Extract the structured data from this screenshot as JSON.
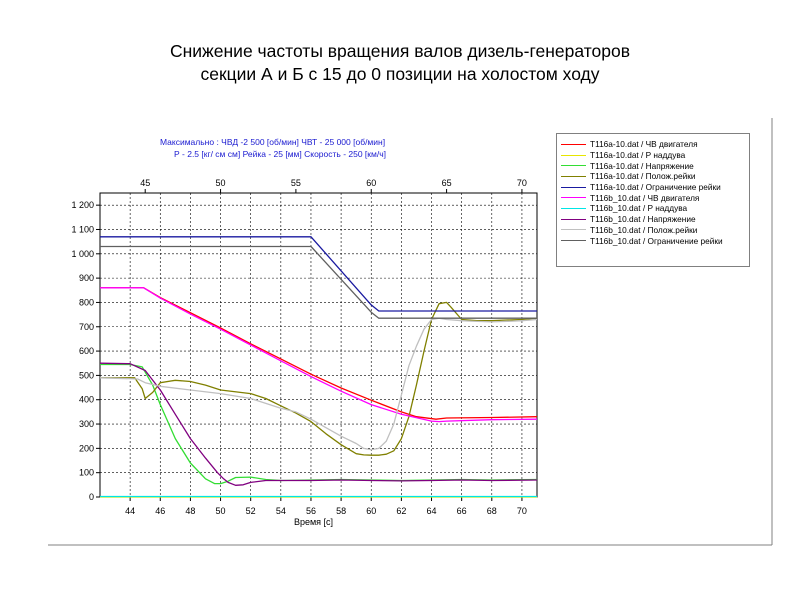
{
  "title": {
    "line1": "Снижение частоты вращения валов дизель-генераторов",
    "line2": "секции А и Б  с 15 до 0 позиции на холостом  ходу"
  },
  "header_info": {
    "line1": "Максимально :   ЧВД -2 500  [об/мин]    ЧВТ - 25 000 [об/мин]",
    "line2": "Р - 2.5 [кг/ см см]   Рейка - 25 [мм]  Скорость - 250 [км/ч]"
  },
  "colors": {
    "title": "#000000",
    "header": "#1a1ad0",
    "grid": "#000000",
    "frame": "#808080"
  },
  "chart_data": {
    "type": "line",
    "title": "",
    "xlabel": "Время [с]",
    "ylabel": "",
    "xlim": [
      42,
      71
    ],
    "ylim": [
      0,
      1250
    ],
    "x_ticks_bottom": [
      44,
      46,
      48,
      50,
      52,
      54,
      56,
      58,
      60,
      62,
      64,
      66,
      68,
      70
    ],
    "x_ticks_top": [
      45,
      50,
      55,
      60,
      65,
      70
    ],
    "y_ticks": [
      0,
      100,
      200,
      300,
      400,
      500,
      600,
      700,
      800,
      900,
      1000,
      1100,
      1200
    ],
    "y_tick_labels": [
      "0",
      "100",
      "200",
      "300",
      "400",
      "500",
      "600",
      "700",
      "800",
      "900",
      "1 000",
      "1 100",
      "1 200"
    ],
    "grid": true,
    "legend_position": "right",
    "series": [
      {
        "name": "T116a-10.dat / ЧВ двигателя",
        "color": "#ff0000",
        "x": [
          42,
          44.9,
          46,
          48,
          50,
          52,
          54,
          56,
          58,
          60,
          62,
          63,
          64.3,
          65,
          68,
          71
        ],
        "y": [
          860,
          860,
          820,
          758,
          695,
          630,
          568,
          505,
          448,
          398,
          350,
          330,
          320,
          325,
          327,
          330
        ]
      },
      {
        "name": "T116a-10.dat / P наддува",
        "color": "#e6e600",
        "x": [
          42,
          71
        ],
        "y": [
          0,
          0
        ]
      },
      {
        "name": "T116a-10.dat / Напряжение",
        "color": "#33dd33",
        "x": [
          42,
          44,
          44.8,
          45.5,
          46,
          47,
          48,
          49,
          49.6,
          50,
          50.5,
          51,
          52,
          53,
          54,
          56,
          58,
          60,
          62,
          64,
          66,
          68,
          71
        ],
        "y": [
          545,
          545,
          535,
          460,
          380,
          240,
          140,
          75,
          55,
          55,
          65,
          80,
          82,
          72,
          68,
          70,
          72,
          70,
          68,
          70,
          72,
          70,
          72
        ]
      },
      {
        "name": "T116a-10.dat / Полож.рейки",
        "color": "#808000",
        "x": [
          42,
          44.3,
          44.8,
          45,
          45.5,
          46,
          47,
          48,
          49,
          50,
          52,
          53,
          54,
          55,
          56,
          57,
          58,
          59,
          59.5,
          60,
          60.5,
          61,
          61.5,
          62,
          62.5,
          63,
          63.5,
          64,
          64.5,
          65,
          65.3,
          66,
          67,
          68,
          69,
          70,
          71
        ],
        "y": [
          490,
          490,
          445,
          405,
          430,
          470,
          480,
          475,
          460,
          440,
          425,
          405,
          375,
          345,
          310,
          260,
          215,
          178,
          173,
          172,
          172,
          176,
          190,
          240,
          330,
          460,
          600,
          730,
          795,
          800,
          780,
          730,
          725,
          725,
          728,
          730,
          735
        ]
      },
      {
        "name": "T116a-10.dat / Ограничение рейки",
        "color": "#1a1aa0",
        "x": [
          42,
          56,
          60,
          60.5,
          71
        ],
        "y": [
          1070,
          1070,
          790,
          765,
          765
        ]
      },
      {
        "name": "T116b_10.dat / ЧВ двигателя",
        "color": "#ff00ff",
        "x": [
          42,
          44.9,
          46,
          48,
          50,
          52,
          54,
          56,
          58,
          60,
          62,
          64,
          64.5,
          65,
          68,
          71
        ],
        "y": [
          860,
          860,
          818,
          752,
          690,
          625,
          560,
          495,
          435,
          380,
          340,
          312,
          310,
          312,
          318,
          320
        ]
      },
      {
        "name": "T116b_10.dat / P наддува",
        "color": "#00e6e6",
        "x": [
          42,
          71
        ],
        "y": [
          2,
          2
        ]
      },
      {
        "name": "T116b_10.dat / Напряжение",
        "color": "#800080",
        "x": [
          42,
          44,
          45,
          46,
          47,
          48,
          49,
          49.8,
          50.2,
          50.5,
          51,
          51.5,
          52,
          53,
          54,
          56,
          58,
          60,
          62,
          64,
          66,
          68,
          71
        ],
        "y": [
          550,
          548,
          520,
          440,
          340,
          240,
          160,
          100,
          75,
          60,
          48,
          50,
          60,
          68,
          68,
          68,
          70,
          68,
          66,
          68,
          70,
          68,
          70
        ]
      },
      {
        "name": "T116b_10.dat / Полож.рейки",
        "color": "#c0c0c0",
        "x": [
          42,
          44.5,
          45,
          46,
          48,
          50,
          52,
          53,
          54,
          55,
          56,
          57,
          58,
          59,
          59.5,
          60,
          60.5,
          61,
          61.5,
          62,
          62.5,
          63,
          63.5,
          64,
          64.5,
          65,
          66,
          67,
          68,
          69,
          70,
          71
        ],
        "y": [
          490,
          485,
          470,
          455,
          440,
          425,
          405,
          385,
          365,
          350,
          320,
          285,
          250,
          220,
          200,
          195,
          200,
          230,
          300,
          420,
          540,
          620,
          690,
          730,
          735,
          730,
          725,
          722,
          720,
          722,
          725,
          730
        ]
      },
      {
        "name": "T116b_10.dat / Ограничение рейки",
        "color": "#606060",
        "x": [
          42,
          56,
          60,
          60.5,
          71
        ],
        "y": [
          1030,
          1030,
          760,
          735,
          735
        ]
      }
    ]
  }
}
